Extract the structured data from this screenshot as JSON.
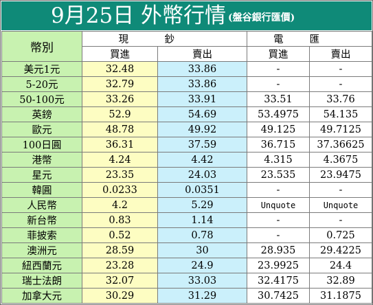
{
  "title": "9月25日 外幣行情",
  "subtitle": "(盤谷銀行匯價)",
  "header": {
    "currency_col": "幣別",
    "cash_group": "現　鈔",
    "cash_chars": [
      "現",
      "鈔"
    ],
    "telegraphic_group": "電　匯",
    "telegraphic_chars": [
      "電",
      "匯"
    ],
    "buy": "買進",
    "sell": "賣出"
  },
  "colors": {
    "title_bg": "#0f8a78",
    "currency_bg": "#c8f2b0",
    "buy_bg": "#fdfdc2",
    "cash_sell_bg": "#cbf0fb",
    "tt_bg": "#ffffff"
  },
  "rows": [
    {
      "currency": "美元1元",
      "cash_buy": "32.48",
      "cash_sell": "33.86",
      "tt_buy": "-",
      "tt_sell": "-"
    },
    {
      "currency": "5-20元",
      "cash_buy": "32.79",
      "cash_sell": "33.86",
      "tt_buy": "-",
      "tt_sell": "-"
    },
    {
      "currency": "50-100元",
      "cash_buy": "33.26",
      "cash_sell": "33.91",
      "tt_buy": "33.51",
      "tt_sell": "33.76"
    },
    {
      "currency": "英鎊",
      "cash_buy": "52.9",
      "cash_sell": "54.69",
      "tt_buy": "53.4975",
      "tt_sell": "54.135"
    },
    {
      "currency": "歐元",
      "cash_buy": "48.78",
      "cash_sell": "49.92",
      "tt_buy": "49.125",
      "tt_sell": "49.7125"
    },
    {
      "currency": "100日圓",
      "cash_buy": "36.31",
      "cash_sell": "37.59",
      "tt_buy": "36.715",
      "tt_sell": "37.36625"
    },
    {
      "currency": "港幣",
      "cash_buy": "4.24",
      "cash_sell": "4.42",
      "tt_buy": "4.315",
      "tt_sell": "4.3675"
    },
    {
      "currency": "星元",
      "cash_buy": "23.35",
      "cash_sell": "24.03",
      "tt_buy": "23.535",
      "tt_sell": "23.9475"
    },
    {
      "currency": "韓圓",
      "cash_buy": "0.0233",
      "cash_sell": "0.0351",
      "tt_buy": "-",
      "tt_sell": "-"
    },
    {
      "currency": "人民幣",
      "cash_buy": "4.2",
      "cash_sell": "5.29",
      "tt_buy": "Unquote",
      "tt_sell": "Unquote"
    },
    {
      "currency": "新台幣",
      "cash_buy": "0.83",
      "cash_sell": "1.14",
      "tt_buy": "-",
      "tt_sell": "-"
    },
    {
      "currency": "菲披索",
      "cash_buy": "0.52",
      "cash_sell": "0.78",
      "tt_buy": "-",
      "tt_sell": "0.725"
    },
    {
      "currency": "澳洲元",
      "cash_buy": "28.59",
      "cash_sell": "30",
      "tt_buy": "28.935",
      "tt_sell": "29.4225"
    },
    {
      "currency": "紐西蘭元",
      "cash_buy": "23.28",
      "cash_sell": "24.9",
      "tt_buy": "23.9925",
      "tt_sell": "24.4"
    },
    {
      "currency": "瑞士法朗",
      "cash_buy": "32.07",
      "cash_sell": "33.03",
      "tt_buy": "32.4175",
      "tt_sell": "32.89"
    },
    {
      "currency": "加拿大元",
      "cash_buy": "30.29",
      "cash_sell": "31.29",
      "tt_buy": "30.7425",
      "tt_sell": "31.1875"
    }
  ]
}
